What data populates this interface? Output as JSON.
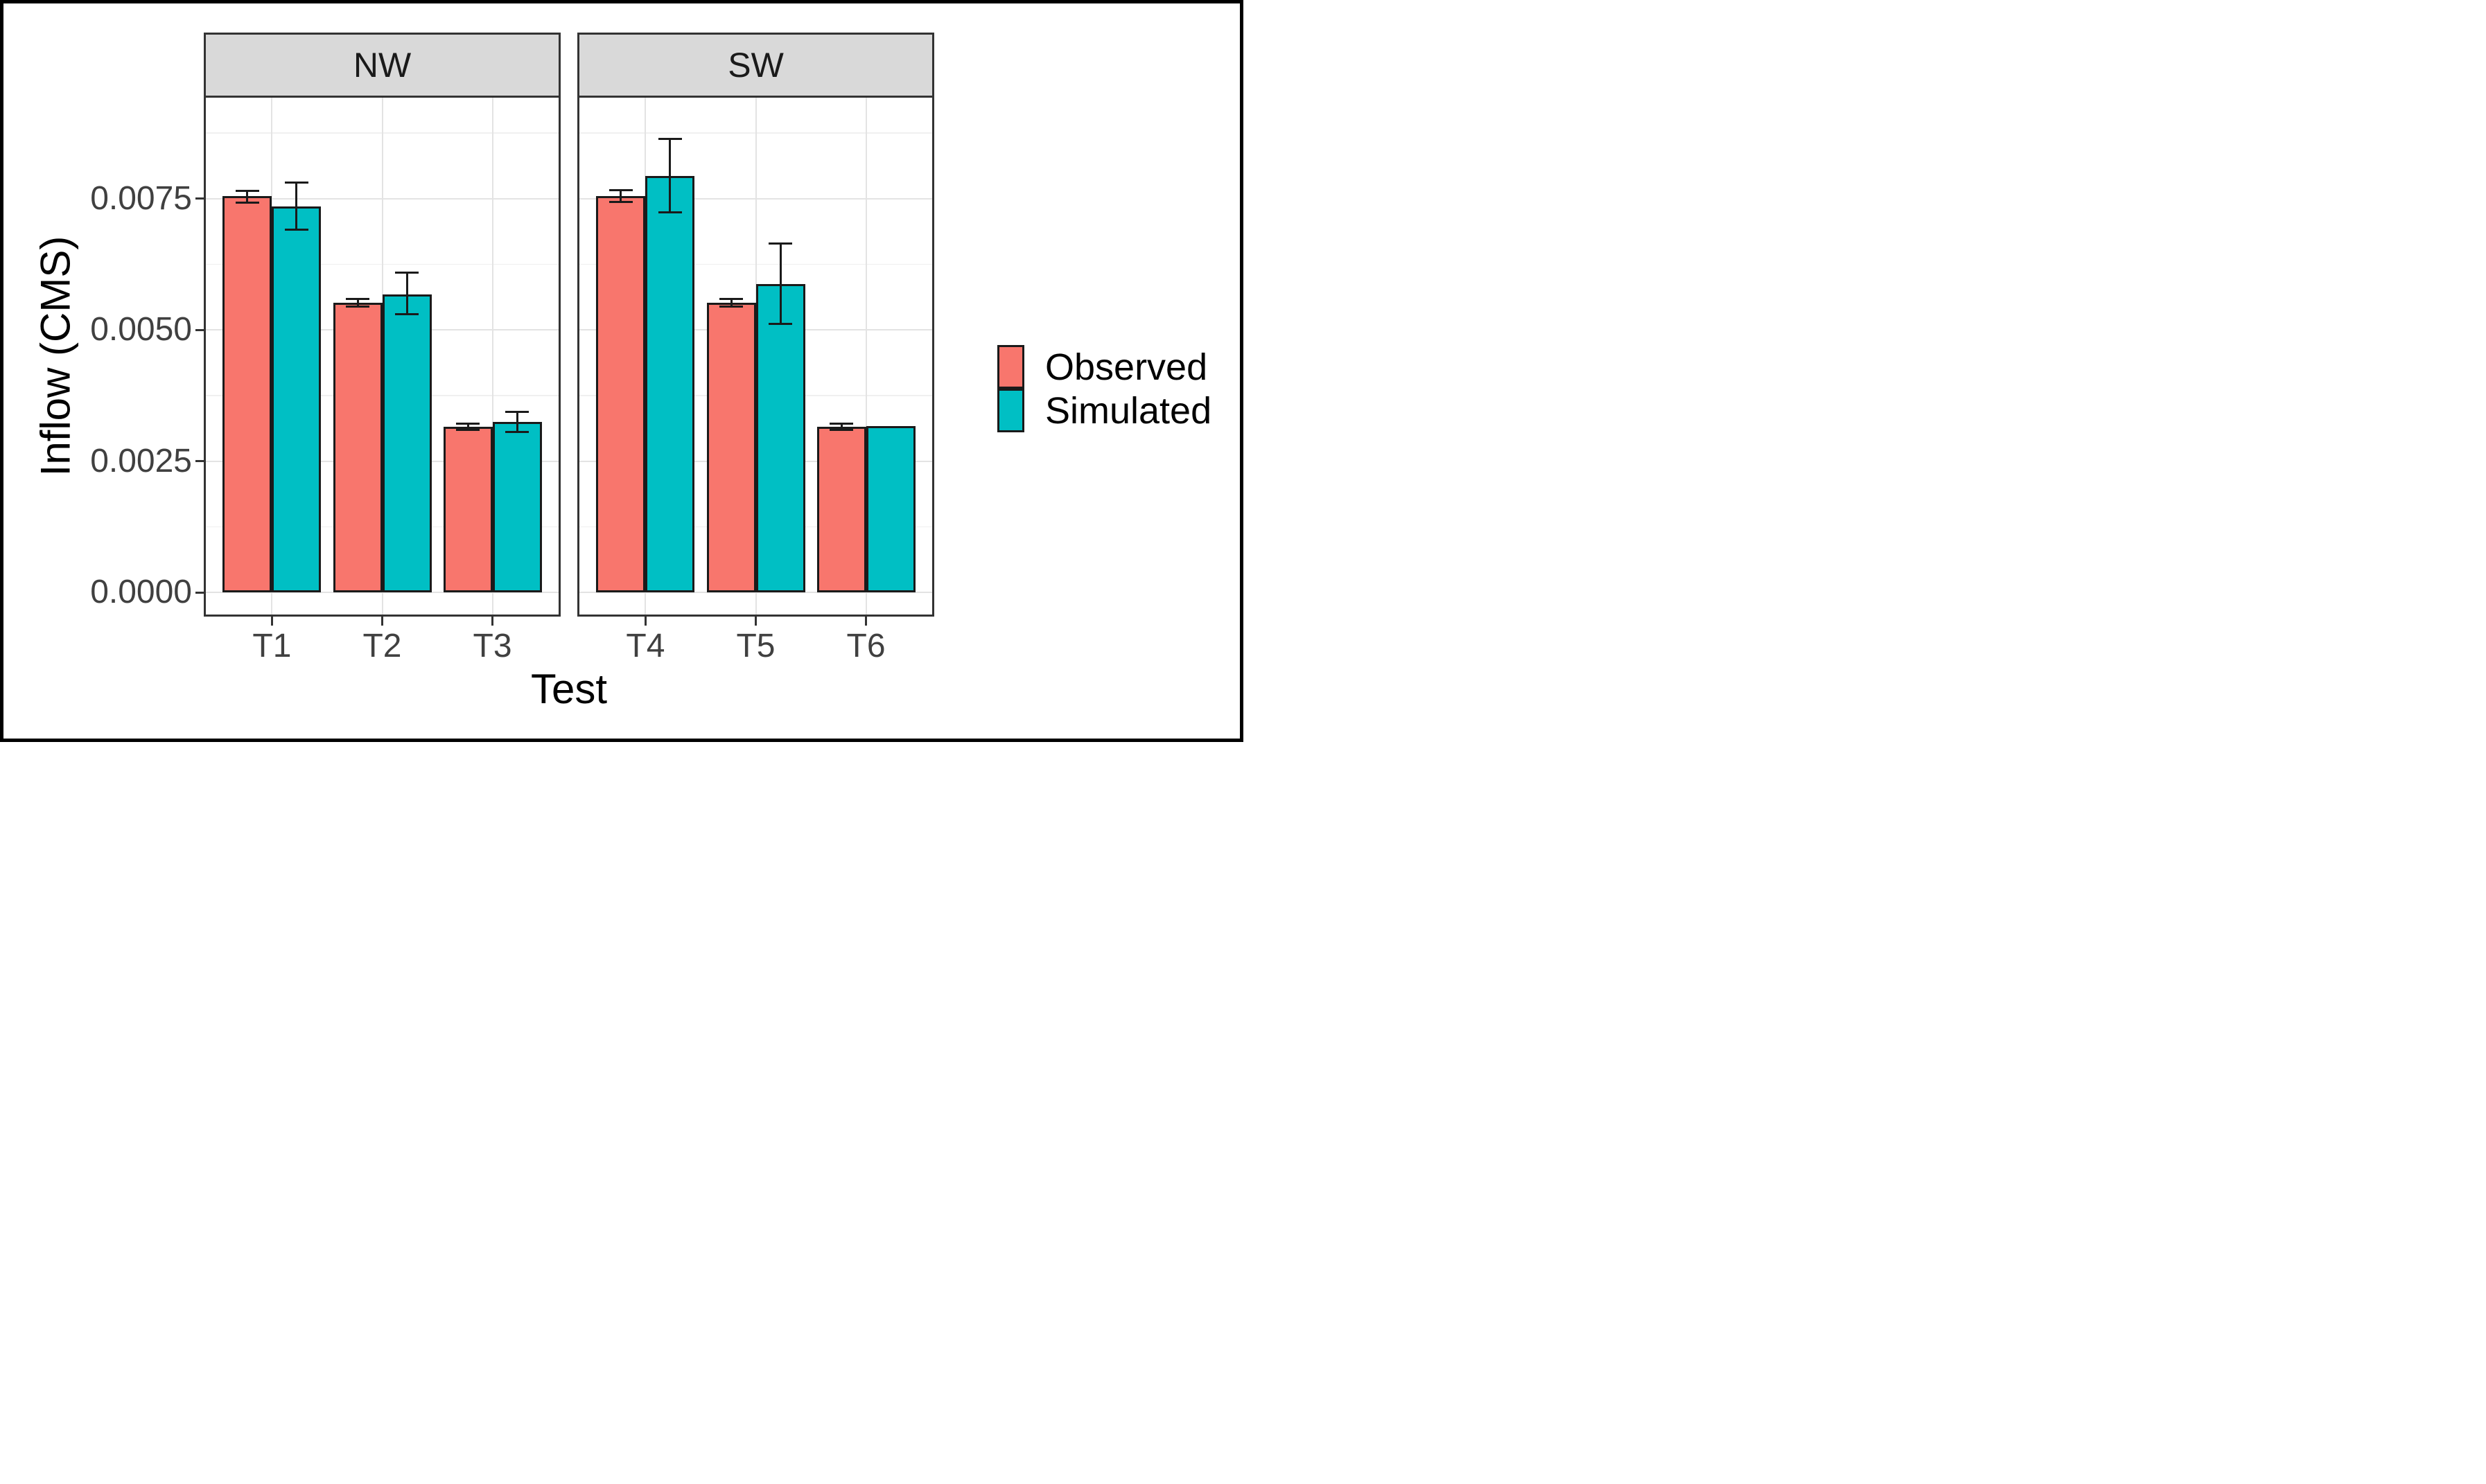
{
  "chart_data": {
    "type": "bar",
    "title": "",
    "xlabel": "Test",
    "ylabel": "Inflow (CMS)",
    "ylim": [
      -0.00042,
      0.00942
    ],
    "y_ticks": [
      0.0,
      0.0025,
      0.005,
      0.0075
    ],
    "y_tick_labels": [
      "0.0000",
      "0.0025",
      "0.0050",
      "0.0075"
    ],
    "y_minor_gridlines": [
      0.00125,
      0.00375,
      0.00625,
      0.00875
    ],
    "grid": "on",
    "legend_position": "right",
    "facets": [
      {
        "label": "NW",
        "categories": [
          "T1",
          "T2",
          "T3"
        ],
        "series": [
          {
            "name": "Observed",
            "values": [
              0.00755,
              0.00552,
              0.00315
            ],
            "err_lo": [
              0.00742,
              0.00544,
              0.00309
            ],
            "err_hi": [
              0.00765,
              0.00559,
              0.00321
            ]
          },
          {
            "name": "Simulated",
            "values": [
              0.00735,
              0.00568,
              0.00325
            ],
            "err_lo": [
              0.00691,
              0.0053,
              0.00305
            ],
            "err_hi": [
              0.00781,
              0.00609,
              0.00344
            ]
          }
        ]
      },
      {
        "label": "SW",
        "categories": [
          "T4",
          "T5",
          "T6"
        ],
        "series": [
          {
            "name": "Observed",
            "values": [
              0.00755,
              0.00552,
              0.00315
            ],
            "err_lo": [
              0.00744,
              0.00544,
              0.0031
            ],
            "err_hi": [
              0.00766,
              0.00559,
              0.00321
            ]
          },
          {
            "name": "Simulated",
            "values": [
              0.00793,
              0.00587,
              0.00317
            ],
            "err_lo": [
              0.00724,
              0.00511,
              null
            ],
            "err_hi": [
              0.00864,
              0.00664,
              null
            ]
          }
        ]
      }
    ],
    "legend": [
      {
        "label": "Observed",
        "color": "#F8766D"
      },
      {
        "label": "Simulated",
        "color": "#00BFC4"
      }
    ],
    "colors": {
      "observed": "#F8766D",
      "simulated": "#00BFC4",
      "strip_bg": "#d9d9d9",
      "panel_border": "#333333",
      "grid_major": "#e3e3e3",
      "grid_minor": "#f0f0f0",
      "bar_outline": "#1a1a1a",
      "figure_border": "#000000"
    }
  }
}
